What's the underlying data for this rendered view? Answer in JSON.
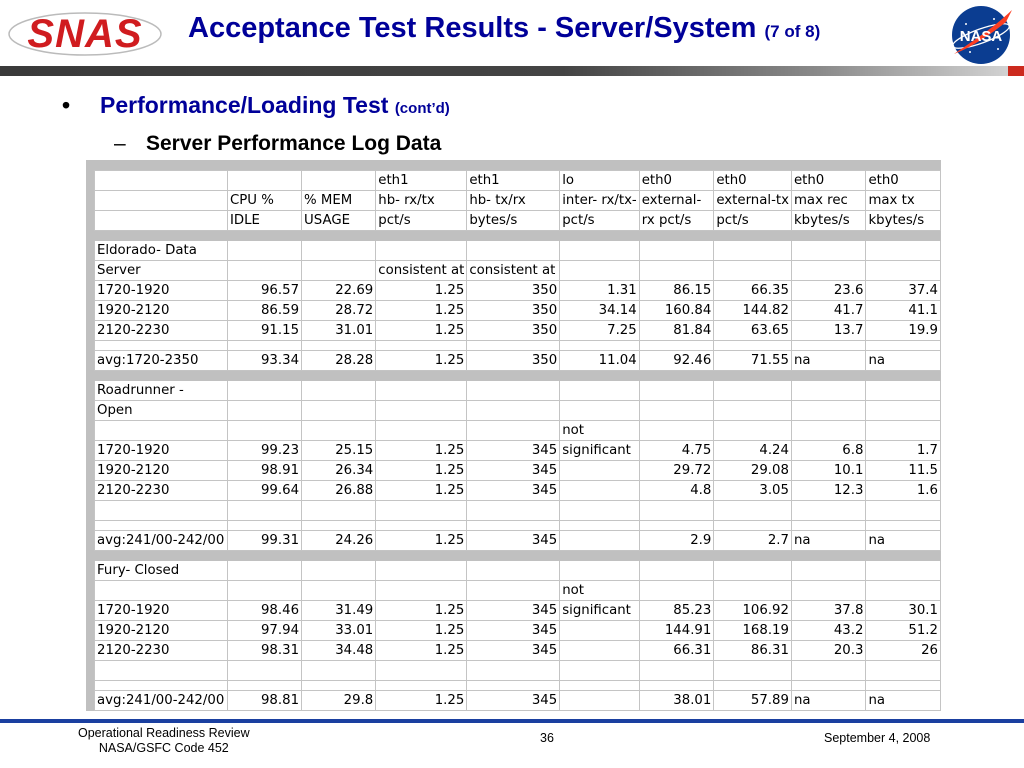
{
  "header": {
    "logo_text": "SNAS",
    "title": "Acceptance Test Results - Server/System",
    "title_sub": "(7 of 8)",
    "nasa_logo_text": "NASA"
  },
  "colors": {
    "title": "#000099",
    "logo_red": "#d01c1f",
    "nasa_blue": "#0b3d91",
    "nasa_red": "#fc3d21",
    "band": "#444444",
    "footer_band": "#1a3fa0"
  },
  "content": {
    "bullet1_mark": "•",
    "bullet1": "Performance/Loading Test",
    "bullet1_small": "(cont’d)",
    "bullet2_mark": "–",
    "bullet2": "Server Performance Log Data"
  },
  "table": {
    "header_rows": [
      [
        "",
        "",
        "",
        "eth1",
        "eth1",
        "lo",
        "eth0",
        "eth0",
        "eth0",
        "eth0"
      ],
      [
        "",
        "CPU %",
        "% MEM",
        "hb- rx/tx",
        "hb- tx/rx",
        "inter- rx/tx-",
        "external-",
        "external-tx",
        "max rec",
        "max tx"
      ],
      [
        "",
        "IDLE",
        "USAGE",
        "pct/s",
        "bytes/s",
        "pct/s",
        "rx pct/s",
        "pct/s",
        "kbytes/s",
        "kbytes/s"
      ]
    ],
    "sections": [
      {
        "title_lines": [
          "Eldorado- Data",
          "Server"
        ],
        "title_row_extra": [
          "",
          "",
          "consistent at",
          "consistent at",
          "",
          "",
          "",
          "",
          ""
        ],
        "rows": [
          [
            "1720-1920",
            "96.57",
            "22.69",
            "1.25",
            "350",
            "1.31",
            "86.15",
            "66.35",
            "23.6",
            "37.4"
          ],
          [
            "1920-2120",
            "86.59",
            "28.72",
            "1.25",
            "350",
            "34.14",
            "160.84",
            "144.82",
            "41.7",
            "41.1"
          ],
          [
            "2120-2230",
            "91.15",
            "31.01",
            "1.25",
            "350",
            "7.25",
            "81.84",
            "63.65",
            "13.7",
            "19.9"
          ]
        ],
        "avg": [
          "avg:1720-2350",
          "93.34",
          "28.28",
          "1.25",
          "350",
          "11.04",
          "92.46",
          "71.55",
          "na",
          "na"
        ]
      },
      {
        "title_lines": [
          "Roadrunner -",
          "Open"
        ],
        "note_lines": [
          "not",
          "significant"
        ],
        "rows": [
          [
            "1720-1920",
            "99.23",
            "25.15",
            "1.25",
            "345",
            "",
            "4.75",
            "4.24",
            "6.8",
            "1.7"
          ],
          [
            "1920-2120",
            "98.91",
            "26.34",
            "1.25",
            "345",
            "",
            "29.72",
            "29.08",
            "10.1",
            "11.5"
          ],
          [
            "2120-2230",
            "99.64",
            "26.88",
            "1.25",
            "345",
            "",
            "4.8",
            "3.05",
            "12.3",
            "1.6"
          ]
        ],
        "avg": [
          "avg:241/00-242/00",
          "99.31",
          "24.26",
          "1.25",
          "345",
          "",
          "2.9",
          "2.7",
          "na",
          "na"
        ]
      },
      {
        "title_lines": [
          "Fury- Closed"
        ],
        "note_lines": [
          "not",
          "significant"
        ],
        "rows": [
          [
            "1720-1920",
            "98.46",
            "31.49",
            "1.25",
            "345",
            "",
            "85.23",
            "106.92",
            "37.8",
            "30.1"
          ],
          [
            "1920-2120",
            "97.94",
            "33.01",
            "1.25",
            "345",
            "",
            "144.91",
            "168.19",
            "43.2",
            "51.2"
          ],
          [
            "2120-2230",
            "98.31",
            "34.48",
            "1.25",
            "345",
            "",
            "66.31",
            "86.31",
            "20.3",
            "26"
          ]
        ],
        "avg": [
          "avg:241/00-242/00",
          "98.81",
          "29.8",
          "1.25",
          "345",
          "",
          "38.01",
          "57.89",
          "na",
          "na"
        ]
      }
    ]
  },
  "footer": {
    "left_line1": "Operational Readiness Review",
    "left_line2": "NASA/GSFC Code 452",
    "page": "36",
    "date": "September 4, 2008"
  }
}
